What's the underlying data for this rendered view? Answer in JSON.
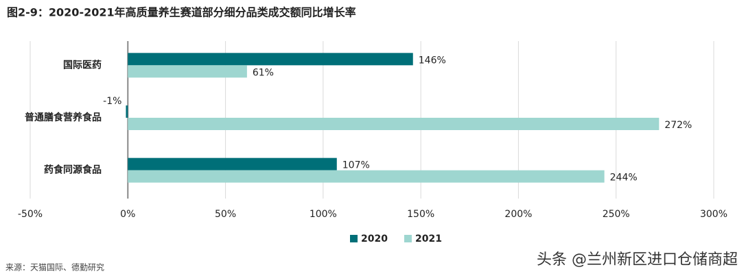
{
  "chart_data": {
    "type": "bar",
    "orientation": "horizontal",
    "title": "图2-9：2020-2021年高质量养生赛道部分细分品类成交额同比增长率",
    "categories": [
      "国际医药",
      "普通膳食营养食品",
      "药食同源食品"
    ],
    "series": [
      {
        "name": "2020",
        "color": "#006f78",
        "values": [
          146,
          -1,
          107
        ],
        "value_labels": [
          "146%",
          "-1%",
          "107%"
        ]
      },
      {
        "name": "2021",
        "color": "#9ed6d0",
        "values": [
          61,
          272,
          244
        ],
        "value_labels": [
          "61%",
          "272%",
          "244%"
        ]
      }
    ],
    "xlim": [
      -50,
      300
    ],
    "xticks": [
      {
        "value": -50,
        "label": "-50%"
      },
      {
        "value": 0,
        "label": "0%"
      },
      {
        "value": 50,
        "label": "50%"
      },
      {
        "value": 100,
        "label": "100%"
      },
      {
        "value": 150,
        "label": "150%"
      },
      {
        "value": 200,
        "label": "200%"
      },
      {
        "value": 250,
        "label": "250%"
      },
      {
        "value": 300,
        "label": "300%"
      }
    ],
    "grid": true,
    "legend": "bottom",
    "source": "来源：天猫国际、德勤研究",
    "watermark": "头条 @兰州新区进口仓储商超"
  }
}
